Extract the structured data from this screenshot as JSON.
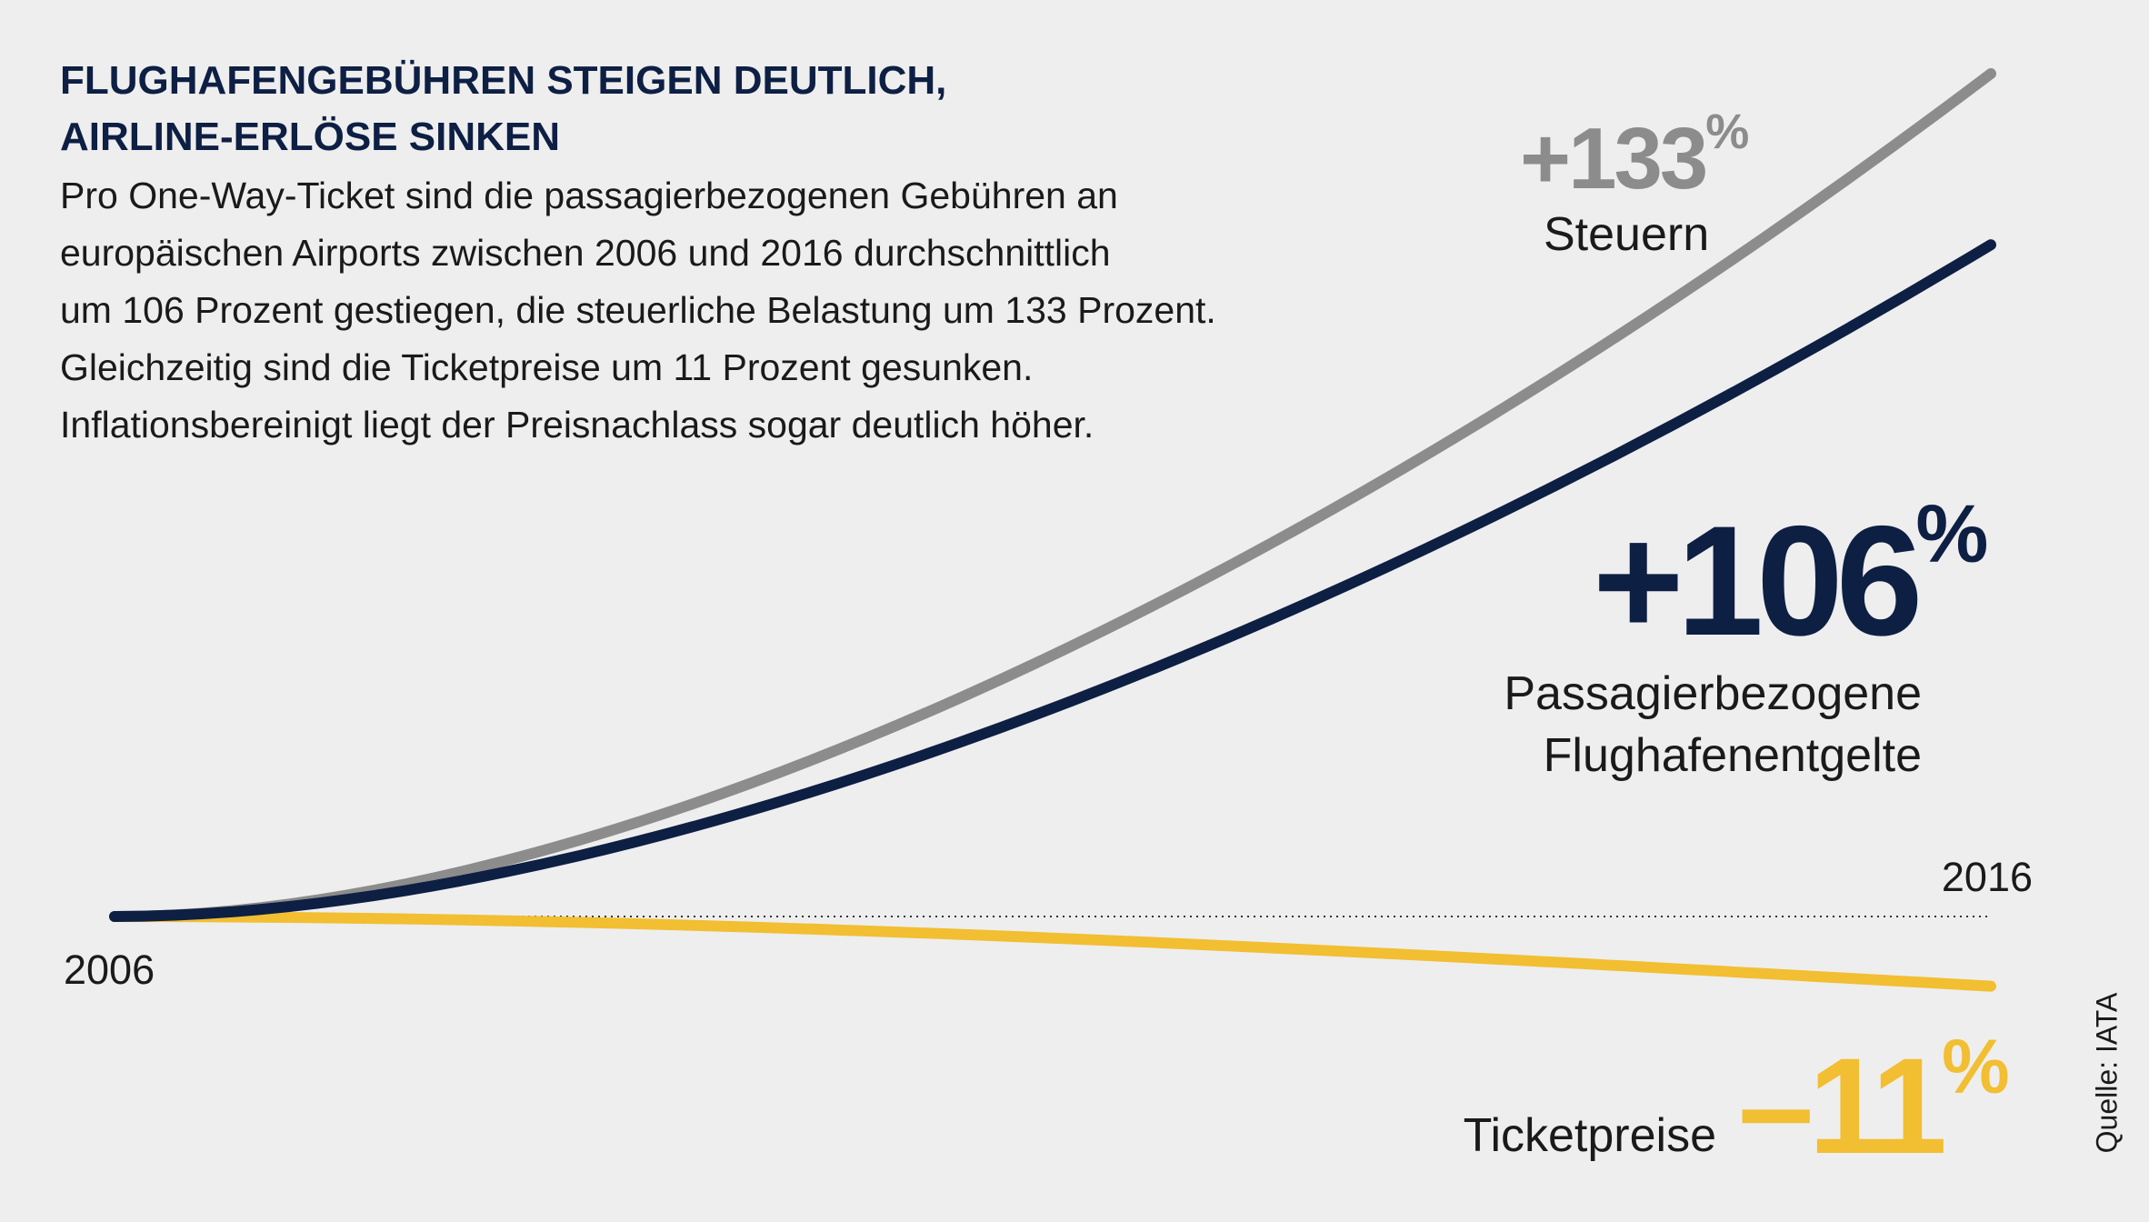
{
  "header": {
    "title_lines": [
      "FLUGHAFENGEBÜHREN STEIGEN DEUTLICH,",
      "AIRLINE-ERLÖSE SINKEN"
    ],
    "intro_lines": [
      "Pro One-Way-Ticket sind die passagierbezogenen Gebühren an",
      "europäischen Airports zwischen 2006 und 2016 durchschnittlich",
      "um 106 Prozent gestiegen, die steuerliche Belastung um 133 Prozent.",
      "Gleichzeitig sind die Ticketpreise um 11 Prozent gesunken.",
      "Inflationsbereinigt liegt der Preisnachlass sogar deutlich höher."
    ]
  },
  "source": "Quelle: IATA",
  "chart_data": {
    "type": "line",
    "x_start_label": "2006",
    "x_end_label": "2016",
    "x": [
      2006,
      2016
    ],
    "ylim": [
      -15,
      140
    ],
    "grid": false,
    "series": [
      {
        "name": "Steuern",
        "values": [
          0,
          133
        ],
        "change_label": "+133",
        "percent_sign": "%",
        "color": "#8c8c8c"
      },
      {
        "name_lines": [
          "Passagierbezogene",
          "Flughafenentgelte"
        ],
        "values": [
          0,
          106
        ],
        "change_label": "+106",
        "percent_sign": "%",
        "color": "#0e1f44"
      },
      {
        "name": "Ticketpreise",
        "values": [
          0,
          -11
        ],
        "change_label": "–11",
        "percent_sign": "%",
        "color": "#f2be32"
      }
    ]
  }
}
